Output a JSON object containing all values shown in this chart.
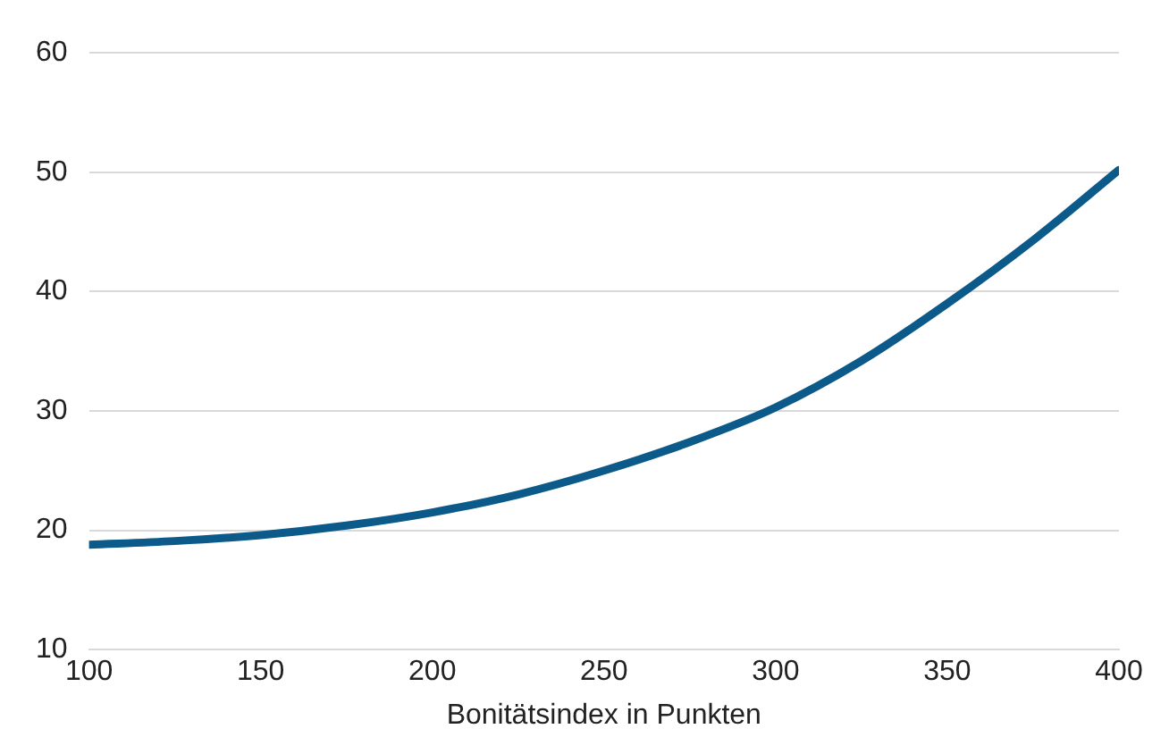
{
  "chart_data": {
    "type": "line",
    "xlabel": "Bonitätsindex in Punkten",
    "x": [
      100,
      125,
      150,
      175,
      200,
      225,
      250,
      275,
      300,
      325,
      350,
      375,
      400
    ],
    "series": [
      {
        "color": "#0b5a8a",
        "values": [
          18.8,
          19.1,
          19.6,
          20.4,
          21.5,
          23.0,
          25.0,
          27.4,
          30.3,
          34.2,
          39.0,
          44.3,
          50.2
        ]
      }
    ],
    "xlim": [
      100,
      400
    ],
    "xticks": [
      100,
      150,
      200,
      250,
      300,
      350,
      400
    ],
    "ylim": [
      10,
      60
    ],
    "yticks": [
      10,
      20,
      30,
      40,
      50,
      60
    ],
    "grid": "y",
    "legend": false,
    "marker": "none",
    "line_style": "solid"
  }
}
